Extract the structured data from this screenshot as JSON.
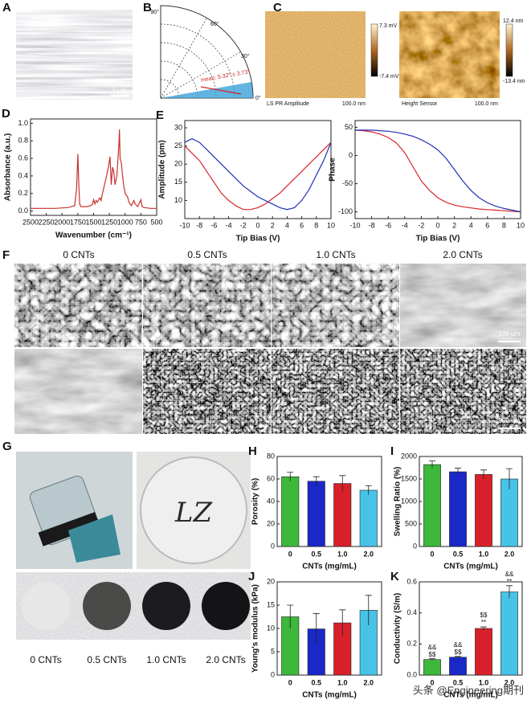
{
  "panels": {
    "A": {
      "label": "A",
      "scale_bar": "5 μm"
    },
    "B": {
      "label": "B",
      "angles": [
        "90°",
        "60°",
        "30°",
        "0°"
      ],
      "annotation": "mean: 5.32° ± 3.73°"
    },
    "C": {
      "label": "C",
      "images": [
        {
          "caption": "LS PR Amplitude",
          "scale_bar": "100.0 nm",
          "max": "7.3 mV",
          "min": "-7.4 mV"
        },
        {
          "caption": "Height Sensor",
          "scale_bar": "100.0 nm",
          "max": "12.4 nm",
          "min": "-13.4 nm"
        }
      ]
    },
    "F": {
      "label": "F",
      "columns": [
        "0 CNTs",
        "0.5 CNTs",
        "1.0 CNTs",
        "2.0 CNTs"
      ],
      "scale_bars": [
        "100 μm",
        "500 nm"
      ]
    },
    "G": {
      "label": "G",
      "photo_text": "LZ",
      "columns": [
        "0 CNTs",
        "0.5 CNTs",
        "1.0 CNTs",
        "2.0 CNTs"
      ]
    }
  },
  "watermark": "头条 @Engineering期刊",
  "chart_data": [
    {
      "type": "line",
      "panel_label": "D",
      "x_label": "Wavenumber (cm⁻¹)",
      "y_label": "Absorbance (a.u.)",
      "x": [
        2500,
        2300,
        2100,
        1900,
        1800,
        1770,
        1750,
        1735,
        1720,
        1700,
        1600,
        1520,
        1500,
        1480,
        1460,
        1440,
        1400,
        1380,
        1360,
        1300,
        1280,
        1260,
        1240,
        1220,
        1200,
        1180,
        1160,
        1130,
        1100,
        1090,
        1080,
        1060,
        1040,
        1020,
        1000,
        960,
        940,
        900,
        860,
        840,
        800,
        750,
        730,
        700,
        600,
        500
      ],
      "series": [
        {
          "color": "#c8322e",
          "values": [
            0.03,
            0.03,
            0.03,
            0.04,
            0.06,
            0.25,
            0.65,
            0.3,
            0.08,
            0.05,
            0.05,
            0.07,
            0.13,
            0.08,
            0.12,
            0.1,
            0.15,
            0.12,
            0.2,
            0.38,
            0.45,
            0.52,
            0.62,
            0.3,
            0.5,
            0.45,
            0.3,
            0.4,
            0.75,
            0.93,
            0.6,
            0.55,
            0.4,
            0.28,
            0.2,
            0.16,
            0.1,
            0.06,
            0.12,
            0.08,
            0.05,
            0.13,
            0.05,
            0.04,
            0.03,
            0.03
          ]
        }
      ],
      "xlim": [
        2500,
        500
      ],
      "xticks": [
        2500,
        2250,
        2000,
        1750,
        1500,
        1250,
        1000,
        750,
        500
      ],
      "ylim": [
        -0.05,
        1.05
      ],
      "yticks": [
        {
          "value": 0,
          "label": "0.0"
        },
        {
          "value": 0.2,
          "label": "0.2"
        },
        {
          "value": 0.4,
          "label": "0.4"
        },
        {
          "value": 0.6,
          "label": "0.6"
        },
        {
          "value": 0.8,
          "label": "0.8"
        },
        {
          "value": 1,
          "label": "1.0"
        }
      ]
    },
    {
      "type": "line",
      "panel_label": "E",
      "x_label": "Tip Bias (V)",
      "y_label": "Amplitude (pm)",
      "x": [
        -10,
        -9,
        -8,
        -7,
        -6,
        -5,
        -4,
        -3,
        -2,
        -1,
        0,
        1,
        2,
        3,
        4,
        5,
        6,
        7,
        8,
        9,
        10
      ],
      "series": [
        {
          "color": "#d9262b",
          "values": [
            25,
            23,
            21,
            18,
            15,
            12,
            10,
            8.5,
            7.5,
            7.5,
            8,
            9,
            10.5,
            12,
            14,
            16,
            18,
            20,
            22,
            24,
            26
          ]
        },
        {
          "color": "#2130b8",
          "values": [
            26,
            27,
            26,
            24,
            22,
            20,
            18,
            16,
            14,
            12.5,
            11,
            10,
            9,
            8,
            7.5,
            8,
            10,
            13,
            17,
            21,
            26
          ]
        }
      ],
      "xlim": [
        -10,
        10
      ],
      "xticks": [
        -10,
        -8,
        -6,
        -4,
        -2,
        0,
        2,
        4,
        6,
        8,
        10
      ],
      "ylim": [
        5,
        32
      ],
      "yticks": [
        10,
        15,
        20,
        25,
        30
      ]
    },
    {
      "type": "line",
      "x_label": "Tip Bias (V)",
      "y_label": "Phase",
      "x": [
        -10,
        -9,
        -8,
        -7,
        -6,
        -5,
        -4,
        -3,
        -2,
        -1,
        0,
        1,
        2,
        3,
        4,
        5,
        6,
        7,
        8,
        9,
        10
      ],
      "series": [
        {
          "color": "#d9262b",
          "values": [
            45,
            44,
            42,
            38,
            32,
            22,
            5,
            -20,
            -45,
            -62,
            -75,
            -83,
            -88,
            -91,
            -93,
            -95,
            -96,
            -97,
            -98,
            -99,
            -100
          ]
        },
        {
          "color": "#2130b8",
          "values": [
            45,
            45,
            45,
            44,
            43,
            41,
            38,
            34,
            28,
            20,
            10,
            -5,
            -25,
            -45,
            -62,
            -75,
            -84,
            -90,
            -94,
            -97,
            -100
          ]
        }
      ],
      "xlim": [
        -10,
        10
      ],
      "xticks": [
        -10,
        -8,
        -6,
        -4,
        -2,
        0,
        2,
        4,
        6,
        8,
        10
      ],
      "ylim": [
        -112,
        62
      ],
      "yticks": [
        -100,
        -50,
        0,
        50
      ]
    },
    {
      "type": "bar",
      "panel_label": "H",
      "x_label": "CNTs (mg/mL)",
      "y_label": "Porosity (%)",
      "categories": [
        "0",
        "0.5",
        "1.0",
        "2.0"
      ],
      "values": [
        62,
        58,
        56,
        50
      ],
      "errors": [
        4,
        4,
        7,
        4
      ],
      "colors": [
        "#3db83a",
        "#1a28c8",
        "#d8202a",
        "#47c3e8"
      ],
      "ylim": [
        0,
        80
      ],
      "yticks": [
        0,
        20,
        40,
        60,
        80
      ]
    },
    {
      "type": "bar",
      "panel_label": "I",
      "x_label": "CNTs (mg/mL)",
      "y_label": "Swelling Ratio (%)",
      "categories": [
        "0",
        "0.5",
        "1.0",
        "2.0"
      ],
      "values": [
        1820,
        1660,
        1600,
        1500
      ],
      "errors": [
        80,
        80,
        100,
        230
      ],
      "colors": [
        "#3db83a",
        "#1a28c8",
        "#d8202a",
        "#47c3e8"
      ],
      "ylim": [
        0,
        2000
      ],
      "yticks": [
        0,
        500,
        1000,
        1500,
        2000
      ]
    },
    {
      "type": "bar",
      "panel_label": "J",
      "x_label": "CNTs (mg/mL)",
      "y_label": "Young's modulus (kPa)",
      "categories": [
        "0",
        "0.5",
        "1.0",
        "2.0"
      ],
      "values": [
        12.5,
        9.9,
        11.2,
        13.9
      ],
      "errors": [
        2.5,
        3.3,
        2.8,
        3.2
      ],
      "colors": [
        "#3db83a",
        "#1a28c8",
        "#d8202a",
        "#47c3e8"
      ],
      "ylim": [
        0,
        20
      ],
      "yticks": [
        0,
        5,
        10,
        15,
        20
      ]
    },
    {
      "type": "bar",
      "panel_label": "K",
      "x_label": "CNTs (mg/mL)",
      "y_label": "Conductivity (S/m)",
      "categories": [
        "0",
        "0.5",
        "1.0",
        "2.0"
      ],
      "values": [
        0.1,
        0.115,
        0.3,
        0.535
      ],
      "errors": [
        0.005,
        0.005,
        0.01,
        0.04
      ],
      "colors": [
        "#3db83a",
        "#1a28c8",
        "#d8202a",
        "#47c3e8"
      ],
      "bar_annotations": [
        [
          "&&",
          "$$"
        ],
        [
          "&&",
          "$$"
        ],
        [
          "$$",
          "**"
        ],
        [
          "&&",
          "**"
        ]
      ],
      "ylim": [
        0,
        0.6
      ],
      "yticks": [
        {
          "value": 0,
          "label": "0.0"
        },
        0.2,
        0.4,
        0.6
      ]
    }
  ]
}
